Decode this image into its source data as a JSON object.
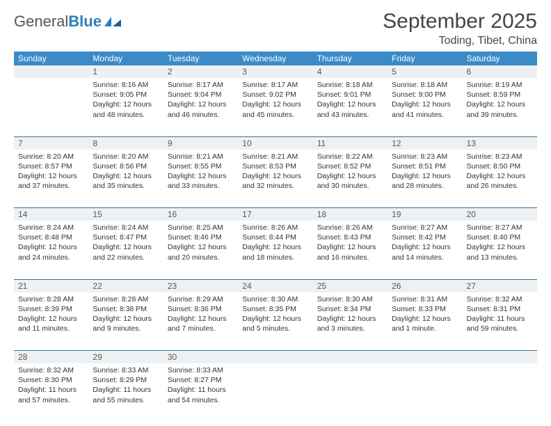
{
  "brand": {
    "part1": "General",
    "part2": "Blue"
  },
  "title": {
    "month": "September 2025",
    "location": "Toding, Tibet, China"
  },
  "colors": {
    "header_bg": "#3b8bc9",
    "header_text": "#ffffff",
    "daynum_bg": "#eef1f3",
    "row_border": "#3b6f9a",
    "body_text": "#333333",
    "page_bg": "#ffffff"
  },
  "weekdays": [
    "Sunday",
    "Monday",
    "Tuesday",
    "Wednesday",
    "Thursday",
    "Friday",
    "Saturday"
  ],
  "weeks": [
    {
      "nums": [
        "",
        "1",
        "2",
        "3",
        "4",
        "5",
        "6"
      ],
      "cells": [
        null,
        {
          "sunrise": "Sunrise: 8:16 AM",
          "sunset": "Sunset: 9:05 PM",
          "daylight": "Daylight: 12 hours and 48 minutes."
        },
        {
          "sunrise": "Sunrise: 8:17 AM",
          "sunset": "Sunset: 9:04 PM",
          "daylight": "Daylight: 12 hours and 46 minutes."
        },
        {
          "sunrise": "Sunrise: 8:17 AM",
          "sunset": "Sunset: 9:02 PM",
          "daylight": "Daylight: 12 hours and 45 minutes."
        },
        {
          "sunrise": "Sunrise: 8:18 AM",
          "sunset": "Sunset: 9:01 PM",
          "daylight": "Daylight: 12 hours and 43 minutes."
        },
        {
          "sunrise": "Sunrise: 8:18 AM",
          "sunset": "Sunset: 9:00 PM",
          "daylight": "Daylight: 12 hours and 41 minutes."
        },
        {
          "sunrise": "Sunrise: 8:19 AM",
          "sunset": "Sunset: 8:59 PM",
          "daylight": "Daylight: 12 hours and 39 minutes."
        }
      ]
    },
    {
      "nums": [
        "7",
        "8",
        "9",
        "10",
        "11",
        "12",
        "13"
      ],
      "cells": [
        {
          "sunrise": "Sunrise: 8:20 AM",
          "sunset": "Sunset: 8:57 PM",
          "daylight": "Daylight: 12 hours and 37 minutes."
        },
        {
          "sunrise": "Sunrise: 8:20 AM",
          "sunset": "Sunset: 8:56 PM",
          "daylight": "Daylight: 12 hours and 35 minutes."
        },
        {
          "sunrise": "Sunrise: 8:21 AM",
          "sunset": "Sunset: 8:55 PM",
          "daylight": "Daylight: 12 hours and 33 minutes."
        },
        {
          "sunrise": "Sunrise: 8:21 AM",
          "sunset": "Sunset: 8:53 PM",
          "daylight": "Daylight: 12 hours and 32 minutes."
        },
        {
          "sunrise": "Sunrise: 8:22 AM",
          "sunset": "Sunset: 8:52 PM",
          "daylight": "Daylight: 12 hours and 30 minutes."
        },
        {
          "sunrise": "Sunrise: 8:23 AM",
          "sunset": "Sunset: 8:51 PM",
          "daylight": "Daylight: 12 hours and 28 minutes."
        },
        {
          "sunrise": "Sunrise: 8:23 AM",
          "sunset": "Sunset: 8:50 PM",
          "daylight": "Daylight: 12 hours and 26 minutes."
        }
      ]
    },
    {
      "nums": [
        "14",
        "15",
        "16",
        "17",
        "18",
        "19",
        "20"
      ],
      "cells": [
        {
          "sunrise": "Sunrise: 8:24 AM",
          "sunset": "Sunset: 8:48 PM",
          "daylight": "Daylight: 12 hours and 24 minutes."
        },
        {
          "sunrise": "Sunrise: 8:24 AM",
          "sunset": "Sunset: 8:47 PM",
          "daylight": "Daylight: 12 hours and 22 minutes."
        },
        {
          "sunrise": "Sunrise: 8:25 AM",
          "sunset": "Sunset: 8:46 PM",
          "daylight": "Daylight: 12 hours and 20 minutes."
        },
        {
          "sunrise": "Sunrise: 8:26 AM",
          "sunset": "Sunset: 8:44 PM",
          "daylight": "Daylight: 12 hours and 18 minutes."
        },
        {
          "sunrise": "Sunrise: 8:26 AM",
          "sunset": "Sunset: 8:43 PM",
          "daylight": "Daylight: 12 hours and 16 minutes."
        },
        {
          "sunrise": "Sunrise: 8:27 AM",
          "sunset": "Sunset: 8:42 PM",
          "daylight": "Daylight: 12 hours and 14 minutes."
        },
        {
          "sunrise": "Sunrise: 8:27 AM",
          "sunset": "Sunset: 8:40 PM",
          "daylight": "Daylight: 12 hours and 13 minutes."
        }
      ]
    },
    {
      "nums": [
        "21",
        "22",
        "23",
        "24",
        "25",
        "26",
        "27"
      ],
      "cells": [
        {
          "sunrise": "Sunrise: 8:28 AM",
          "sunset": "Sunset: 8:39 PM",
          "daylight": "Daylight: 12 hours and 11 minutes."
        },
        {
          "sunrise": "Sunrise: 8:28 AM",
          "sunset": "Sunset: 8:38 PM",
          "daylight": "Daylight: 12 hours and 9 minutes."
        },
        {
          "sunrise": "Sunrise: 8:29 AM",
          "sunset": "Sunset: 8:36 PM",
          "daylight": "Daylight: 12 hours and 7 minutes."
        },
        {
          "sunrise": "Sunrise: 8:30 AM",
          "sunset": "Sunset: 8:35 PM",
          "daylight": "Daylight: 12 hours and 5 minutes."
        },
        {
          "sunrise": "Sunrise: 8:30 AM",
          "sunset": "Sunset: 8:34 PM",
          "daylight": "Daylight: 12 hours and 3 minutes."
        },
        {
          "sunrise": "Sunrise: 8:31 AM",
          "sunset": "Sunset: 8:33 PM",
          "daylight": "Daylight: 12 hours and 1 minute."
        },
        {
          "sunrise": "Sunrise: 8:32 AM",
          "sunset": "Sunset: 8:31 PM",
          "daylight": "Daylight: 11 hours and 59 minutes."
        }
      ]
    },
    {
      "nums": [
        "28",
        "29",
        "30",
        "",
        "",
        "",
        ""
      ],
      "cells": [
        {
          "sunrise": "Sunrise: 8:32 AM",
          "sunset": "Sunset: 8:30 PM",
          "daylight": "Daylight: 11 hours and 57 minutes."
        },
        {
          "sunrise": "Sunrise: 8:33 AM",
          "sunset": "Sunset: 8:29 PM",
          "daylight": "Daylight: 11 hours and 55 minutes."
        },
        {
          "sunrise": "Sunrise: 8:33 AM",
          "sunset": "Sunset: 8:27 PM",
          "daylight": "Daylight: 11 hours and 54 minutes."
        },
        null,
        null,
        null,
        null
      ]
    }
  ]
}
